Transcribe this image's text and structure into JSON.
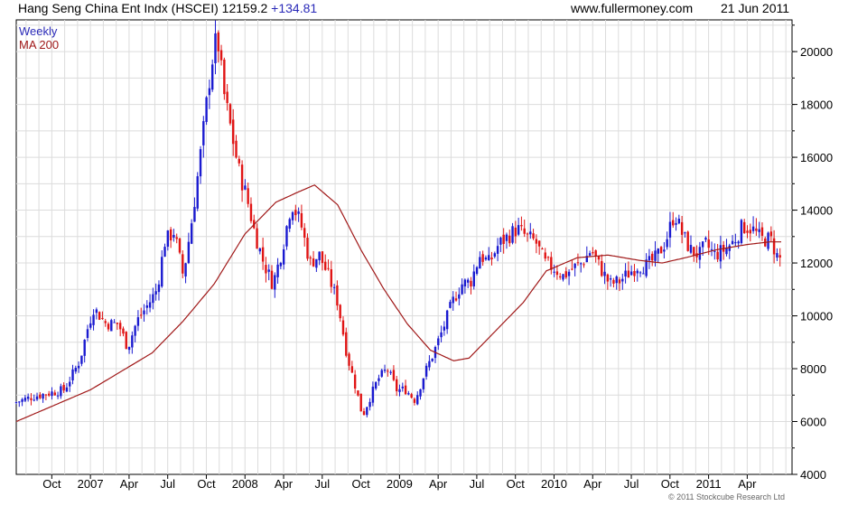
{
  "header": {
    "title": "Hang Seng China Ent Indx (HSCEI)",
    "last": "12159.2",
    "change": "+134.81",
    "site": "www.fullermoney.com",
    "date": "21 Jun 2011"
  },
  "footer": {
    "copyright": "© 2011 Stockcube Research Ltd"
  },
  "colors": {
    "up": "#1a1ad0",
    "down": "#e01414",
    "ma": "#a01818",
    "grid": "#dcdcdc",
    "legend_weekly": "#2a2ab8",
    "legend_ma": "#a01818"
  },
  "chart_data": {
    "type": "candlestick",
    "legend": [
      {
        "label": "Weekly",
        "color": "#2a2ab8"
      },
      {
        "label": "MA 200",
        "color": "#a01818"
      }
    ],
    "x_ticks": [
      {
        "label": "Oct",
        "t": 2006.75
      },
      {
        "label": "2007",
        "t": 2007.0
      },
      {
        "label": "Apr",
        "t": 2007.25
      },
      {
        "label": "Jul",
        "t": 2007.5
      },
      {
        "label": "Oct",
        "t": 2007.75
      },
      {
        "label": "2008",
        "t": 2008.0
      },
      {
        "label": "Apr",
        "t": 2008.25
      },
      {
        "label": "Jul",
        "t": 2008.5
      },
      {
        "label": "Oct",
        "t": 2008.75
      },
      {
        "label": "2009",
        "t": 2009.0
      },
      {
        "label": "Apr",
        "t": 2009.25
      },
      {
        "label": "Jul",
        "t": 2009.5
      },
      {
        "label": "Oct",
        "t": 2009.75
      },
      {
        "label": "2010",
        "t": 2010.0
      },
      {
        "label": "Apr",
        "t": 2010.25
      },
      {
        "label": "Jul",
        "t": 2010.5
      },
      {
        "label": "Oct",
        "t": 2010.75
      },
      {
        "label": "2011",
        "t": 2011.0
      },
      {
        "label": "Apr",
        "t": 2011.25
      }
    ],
    "y_ticks": [
      4000,
      6000,
      8000,
      10000,
      12000,
      14000,
      16000,
      18000,
      20000
    ],
    "xlim": [
      2006.52,
      2011.54
    ],
    "ylim": [
      4000,
      21200
    ],
    "price_anchors": [
      [
        2006.52,
        6700
      ],
      [
        2006.65,
        6950
      ],
      [
        2006.85,
        7200
      ],
      [
        2006.95,
        8300
      ],
      [
        2007.0,
        9500
      ],
      [
        2007.04,
        10300
      ],
      [
        2007.12,
        9700
      ],
      [
        2007.2,
        9700
      ],
      [
        2007.26,
        8800
      ],
      [
        2007.32,
        9800
      ],
      [
        2007.4,
        10500
      ],
      [
        2007.45,
        11000
      ],
      [
        2007.5,
        12800
      ],
      [
        2007.56,
        13200
      ],
      [
        2007.62,
        11500
      ],
      [
        2007.68,
        13800
      ],
      [
        2007.74,
        16500
      ],
      [
        2007.8,
        19500
      ],
      [
        2007.84,
        20600
      ],
      [
        2007.88,
        18500
      ],
      [
        2007.93,
        17000
      ],
      [
        2007.98,
        15500
      ],
      [
        2008.03,
        14500
      ],
      [
        2008.08,
        13200
      ],
      [
        2008.14,
        12000
      ],
      [
        2008.2,
        11200
      ],
      [
        2008.26,
        12500
      ],
      [
        2008.32,
        14300
      ],
      [
        2008.38,
        13500
      ],
      [
        2008.44,
        12000
      ],
      [
        2008.5,
        12300
      ],
      [
        2008.56,
        11500
      ],
      [
        2008.62,
        10500
      ],
      [
        2008.68,
        8500
      ],
      [
        2008.74,
        7200
      ],
      [
        2008.78,
        6200
      ],
      [
        2008.82,
        6800
      ],
      [
        2008.88,
        7600
      ],
      [
        2008.94,
        8000
      ],
      [
        2009.0,
        7200
      ],
      [
        2009.06,
        7200
      ],
      [
        2009.12,
        6800
      ],
      [
        2009.18,
        7800
      ],
      [
        2009.24,
        8600
      ],
      [
        2009.3,
        9500
      ],
      [
        2009.36,
        10500
      ],
      [
        2009.42,
        11200
      ],
      [
        2009.48,
        11300
      ],
      [
        2009.54,
        12300
      ],
      [
        2009.6,
        12000
      ],
      [
        2009.66,
        12700
      ],
      [
        2009.72,
        13000
      ],
      [
        2009.78,
        13300
      ],
      [
        2009.84,
        13000
      ],
      [
        2009.9,
        12800
      ],
      [
        2009.96,
        12000
      ],
      [
        2010.02,
        11800
      ],
      [
        2010.08,
        11500
      ],
      [
        2010.14,
        11800
      ],
      [
        2010.2,
        12000
      ],
      [
        2010.26,
        12500
      ],
      [
        2010.32,
        11800
      ],
      [
        2010.38,
        11200
      ],
      [
        2010.44,
        11300
      ],
      [
        2010.5,
        11600
      ],
      [
        2010.56,
        11900
      ],
      [
        2010.62,
        11900
      ],
      [
        2010.68,
        12200
      ],
      [
        2010.74,
        12800
      ],
      [
        2010.8,
        13900
      ],
      [
        2010.84,
        13200
      ],
      [
        2010.9,
        12500
      ],
      [
        2010.96,
        12300
      ],
      [
        2011.0,
        12700
      ],
      [
        2011.06,
        12300
      ],
      [
        2011.12,
        12500
      ],
      [
        2011.18,
        12800
      ],
      [
        2011.24,
        13400
      ],
      [
        2011.3,
        13300
      ],
      [
        2011.36,
        12900
      ],
      [
        2011.42,
        12900
      ],
      [
        2011.47,
        12159
      ]
    ],
    "ma_anchors": [
      [
        2006.52,
        6000
      ],
      [
        2006.8,
        6700
      ],
      [
        2007.0,
        7200
      ],
      [
        2007.2,
        7900
      ],
      [
        2007.4,
        8600
      ],
      [
        2007.6,
        9800
      ],
      [
        2007.8,
        11200
      ],
      [
        2008.0,
        13100
      ],
      [
        2008.2,
        14300
      ],
      [
        2008.35,
        14700
      ],
      [
        2008.45,
        14950
      ],
      [
        2008.6,
        14200
      ],
      [
        2008.75,
        12500
      ],
      [
        2008.9,
        11000
      ],
      [
        2009.05,
        9700
      ],
      [
        2009.2,
        8700
      ],
      [
        2009.35,
        8300
      ],
      [
        2009.45,
        8400
      ],
      [
        2009.6,
        9300
      ],
      [
        2009.8,
        10500
      ],
      [
        2009.95,
        11700
      ],
      [
        2010.15,
        12200
      ],
      [
        2010.35,
        12300
      ],
      [
        2010.55,
        12100
      ],
      [
        2010.7,
        12000
      ],
      [
        2010.85,
        12200
      ],
      [
        2011.05,
        12500
      ],
      [
        2011.25,
        12700
      ],
      [
        2011.4,
        12800
      ],
      [
        2011.47,
        12800
      ]
    ]
  }
}
